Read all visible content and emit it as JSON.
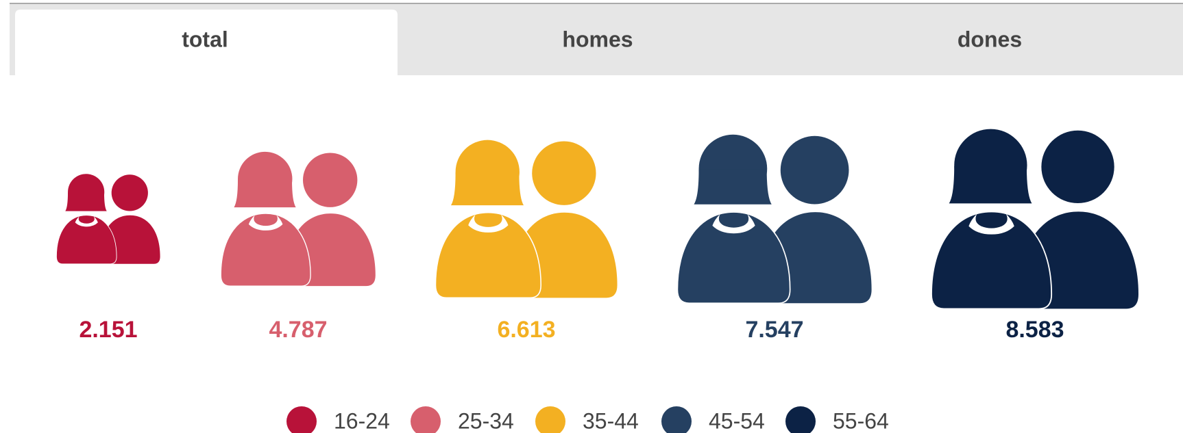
{
  "tabs": [
    "total",
    "homes",
    "dones"
  ],
  "chart_data": {
    "type": "pictogram",
    "categories": [
      "16-24",
      "25-34",
      "35-44",
      "45-54",
      "55-64"
    ],
    "values": [
      2151,
      4787,
      6613,
      7547,
      8583
    ],
    "value_labels": [
      "2.151",
      "4.787",
      "6.613",
      "7.547",
      "8.583"
    ],
    "colors": [
      "#b81239",
      "#d75f6d",
      "#f3b022",
      "#254061",
      "#0c2245"
    ]
  }
}
